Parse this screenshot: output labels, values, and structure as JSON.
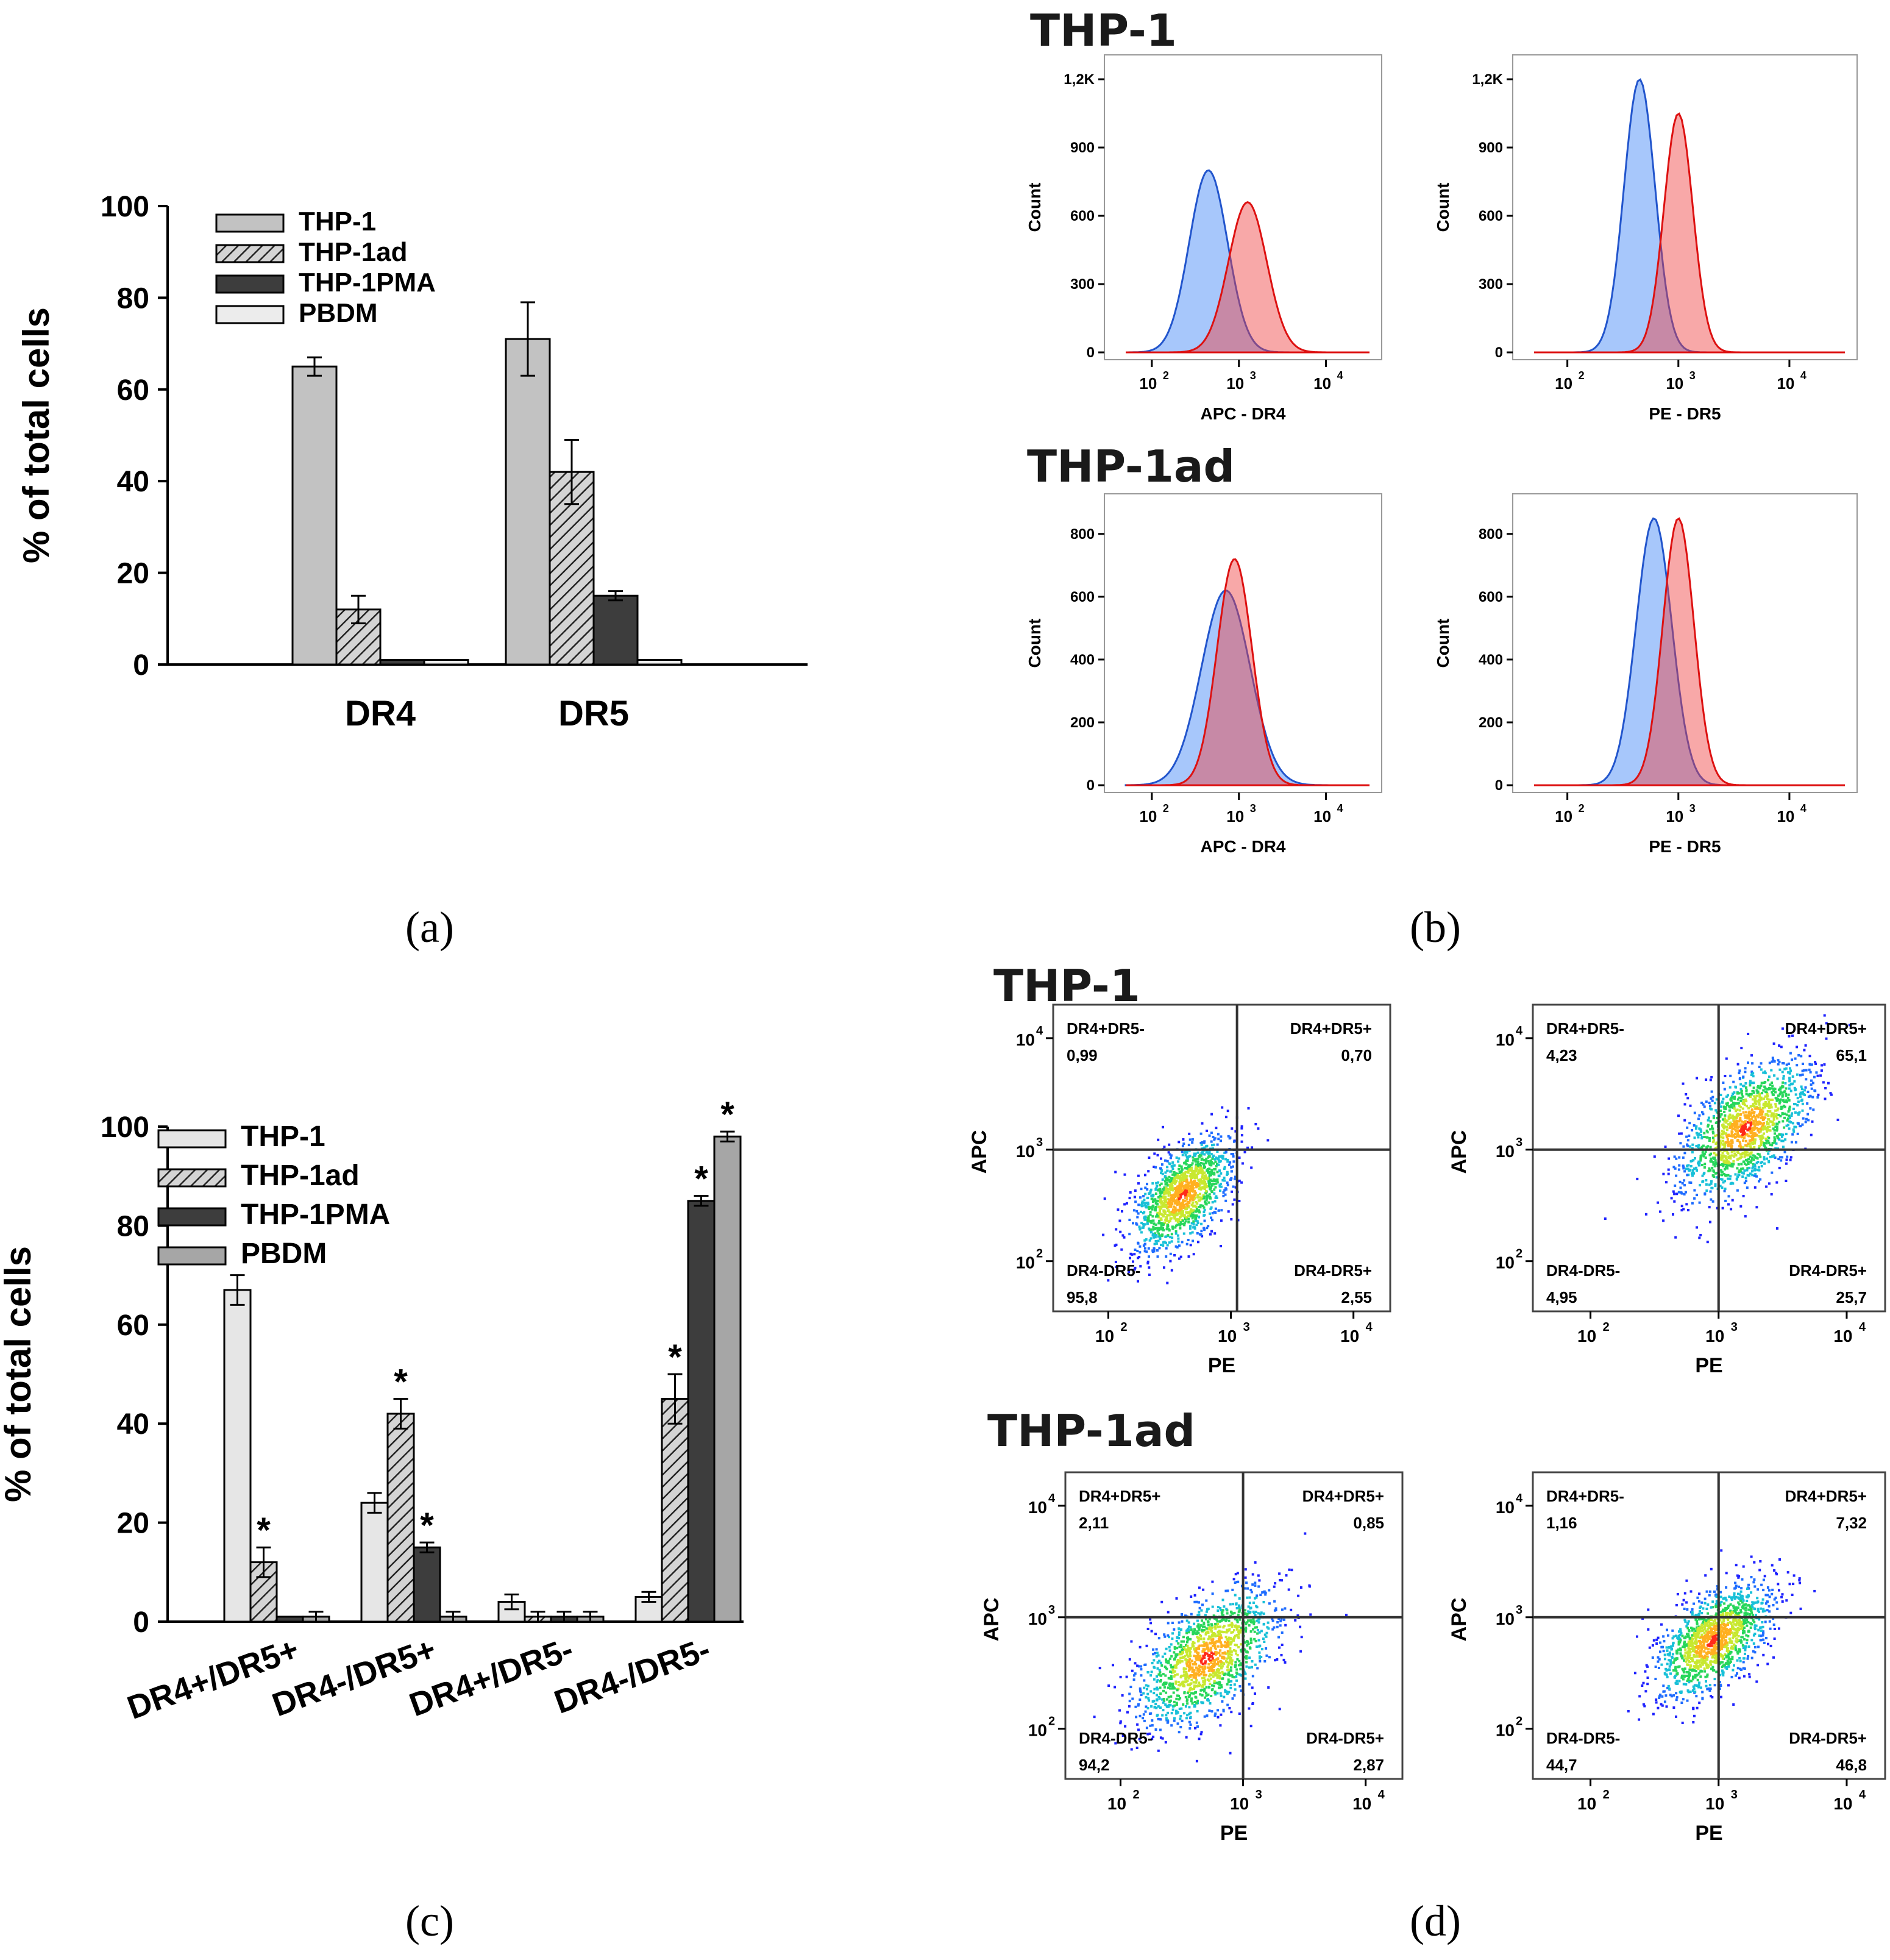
{
  "colors": {
    "thp1_light": "#c2c2c2",
    "thp1_lighter": "#e6e6e6",
    "thp1pma": "#3d3d3d",
    "pbdm_light": "#ececec",
    "pbdm_gray": "#a6a6a6",
    "hist_blue": "#3b82f6",
    "hist_red": "#ef3e3e"
  },
  "panel_labels": [
    "(a)",
    "(b)",
    "(c)",
    "(d)"
  ],
  "chart_data": [
    {
      "id": "a",
      "type": "bar",
      "title": "",
      "ylabel": "% of total cells",
      "xlabel": "",
      "ylim": [
        0,
        100
      ],
      "yticks": [
        "0",
        "20",
        "40",
        "60",
        "80",
        "100"
      ],
      "categories": [
        "DR4",
        "DR5"
      ],
      "legend": [
        "THP-1",
        "THP-1ad",
        "THP-1PMA",
        "PBDM"
      ],
      "series": [
        {
          "name": "THP-1",
          "values": [
            65,
            71
          ],
          "errors": [
            2,
            8
          ],
          "fill": "#c2c2c2",
          "hatch": false
        },
        {
          "name": "THP-1ad",
          "values": [
            12,
            42
          ],
          "errors": [
            3,
            7
          ],
          "fill": "#b5b5b5",
          "hatch": true
        },
        {
          "name": "THP-1PMA",
          "values": [
            1,
            15
          ],
          "errors": [
            0,
            1
          ],
          "fill": "#3d3d3d",
          "hatch": false
        },
        {
          "name": "PBDM",
          "values": [
            1,
            1
          ],
          "errors": [
            0,
            0
          ],
          "fill": "#ececec",
          "hatch": false
        }
      ]
    },
    {
      "id": "c",
      "type": "bar",
      "title": "",
      "ylabel": "% of total cells",
      "xlabel": "",
      "ylim": [
        0,
        100
      ],
      "yticks": [
        "0",
        "20",
        "40",
        "60",
        "80",
        "100"
      ],
      "categories": [
        "DR4+/DR5+",
        "DR4-/DR5+",
        "DR4+/DR5-",
        "DR4-/DR5-"
      ],
      "legend": [
        "THP-1",
        "THP-1ad",
        "THP-1PMA",
        "PBDM"
      ],
      "series": [
        {
          "name": "THP-1",
          "values": [
            67,
            24,
            4,
            5
          ],
          "errors": [
            3,
            2,
            1.5,
            1
          ],
          "stars": [
            false,
            false,
            false,
            false
          ],
          "fill": "#e6e6e6",
          "hatch": false
        },
        {
          "name": "THP-1ad",
          "values": [
            12,
            42,
            1,
            45
          ],
          "errors": [
            3,
            3,
            1,
            5
          ],
          "stars": [
            true,
            true,
            false,
            true
          ],
          "fill": "#b5b5b5",
          "hatch": true
        },
        {
          "name": "THP-1PMA",
          "values": [
            1,
            15,
            1,
            85
          ],
          "errors": [
            0,
            1,
            1,
            1
          ],
          "stars": [
            false,
            true,
            false,
            true
          ],
          "fill": "#3d3d3d",
          "hatch": false
        },
        {
          "name": "PBDM",
          "values": [
            1,
            1,
            1,
            98
          ],
          "errors": [
            1,
            1,
            1,
            1
          ],
          "stars": [
            false,
            false,
            false,
            true
          ],
          "fill": "#a6a6a6",
          "hatch": false
        }
      ],
      "star_symbol": "*"
    },
    {
      "id": "b",
      "type": "histogram",
      "groups": [
        {
          "title": "THP-1",
          "plots": [
            {
              "xlabel": "APC - DR4",
              "ylabel": "Count",
              "yticks": [
                "0",
                "300",
                "600",
                "900",
                "1,2K"
              ],
              "ymax": 1200,
              "blue": {
                "center_log": 2.65,
                "sigma": 0.22,
                "peak": 800
              },
              "red": {
                "center_log": 3.1,
                "sigma": 0.22,
                "peak": 660
              }
            },
            {
              "xlabel": "PE - DR5",
              "ylabel": "Count",
              "yticks": [
                "0",
                "300",
                "600",
                "900",
                "1,2K"
              ],
              "ymax": 1200,
              "blue": {
                "center_log": 2.65,
                "sigma": 0.14,
                "peak": 1200
              },
              "red": {
                "center_log": 3.0,
                "sigma": 0.13,
                "peak": 1050
              }
            }
          ]
        },
        {
          "title": "THP-1ad",
          "plots": [
            {
              "xlabel": "APC - DR4",
              "ylabel": "Count",
              "yticks": [
                "0",
                "200",
                "400",
                "600",
                "800"
              ],
              "ymax": 850,
              "blue": {
                "center_log": 2.85,
                "sigma": 0.28,
                "peak": 620
              },
              "red": {
                "center_log": 2.95,
                "sigma": 0.2,
                "peak": 720
              }
            },
            {
              "xlabel": "PE - DR5",
              "ylabel": "Count",
              "yticks": [
                "0",
                "200",
                "400",
                "600",
                "800"
              ],
              "ymax": 850,
              "blue": {
                "center_log": 2.78,
                "sigma": 0.16,
                "peak": 850
              },
              "red": {
                "center_log": 3.0,
                "sigma": 0.14,
                "peak": 850
              }
            }
          ]
        }
      ],
      "xticks": [
        "10",
        "10",
        "10"
      ],
      "xtick_exponents": [
        "2",
        "3",
        "4"
      ]
    },
    {
      "id": "d",
      "type": "scatter",
      "groups": [
        {
          "title": "THP-1",
          "plots": [
            {
              "xlabel": "PE",
              "ylabel": "APC",
              "quadrants": {
                "ul_name": "DR4+DR5-",
                "ul_value": "0,99",
                "ur_name": "DR4+DR5+",
                "ur_value": "0,70",
                "ll_name": "DR4-DR5-",
                "ll_value": "95,8",
                "lr_name": "DR4-DR5+",
                "lr_value": "2,55"
              },
              "gate_log": [
                3.05,
                3.0
              ],
              "cloud_center_log": [
                2.6,
                2.6
              ],
              "cloud_sigma": [
                0.2,
                0.25
              ]
            },
            {
              "xlabel": "PE",
              "ylabel": "APC",
              "quadrants": {
                "ul_name": "DR4+DR5-",
                "ul_value": "4,23",
                "ur_name": "DR4+DR5+",
                "ur_value": "65,1",
                "ll_name": "DR4-DR5-",
                "ll_value": "4,95",
                "lr_name": "DR4-DR5+",
                "lr_value": "25,7"
              },
              "gate_log": [
                3.0,
                3.0
              ],
              "cloud_center_log": [
                3.2,
                3.2
              ],
              "cloud_sigma": [
                0.25,
                0.3
              ]
            }
          ]
        },
        {
          "title": "THP-1ad",
          "plots": [
            {
              "xlabel": "PE",
              "ylabel": "APC",
              "quadrants": {
                "ul_name": "DR4+DR5+",
                "ul_value": "2,11",
                "ur_name": "DR4+DR5+",
                "ur_value": "0,85",
                "ll_name": "DR4-DR5-",
                "ll_value": "94,2",
                "lr_name": "DR4-DR5+",
                "lr_value": "2,87"
              },
              "gate_log": [
                3.0,
                3.0
              ],
              "cloud_center_log": [
                2.7,
                2.65
              ],
              "cloud_sigma": [
                0.28,
                0.3
              ]
            },
            {
              "xlabel": "PE",
              "ylabel": "APC",
              "quadrants": {
                "ul_name": "DR4+DR5-",
                "ul_value": "1,16",
                "ur_name": "DR4+DR5+",
                "ur_value": "7,32",
                "ll_name": "DR4-DR5-",
                "ll_value": "44,7",
                "lr_name": "DR4-DR5+",
                "lr_value": "46,8"
              },
              "gate_log": [
                3.0,
                3.0
              ],
              "cloud_center_log": [
                2.95,
                2.8
              ],
              "cloud_sigma": [
                0.22,
                0.25
              ]
            }
          ]
        }
      ],
      "xticks": [
        "10",
        "10",
        "10"
      ],
      "xtick_exponents": [
        "2",
        "3",
        "4"
      ],
      "yticks": [
        "10",
        "10",
        "10"
      ],
      "ytick_exponents": [
        "2",
        "3",
        "4"
      ]
    }
  ]
}
